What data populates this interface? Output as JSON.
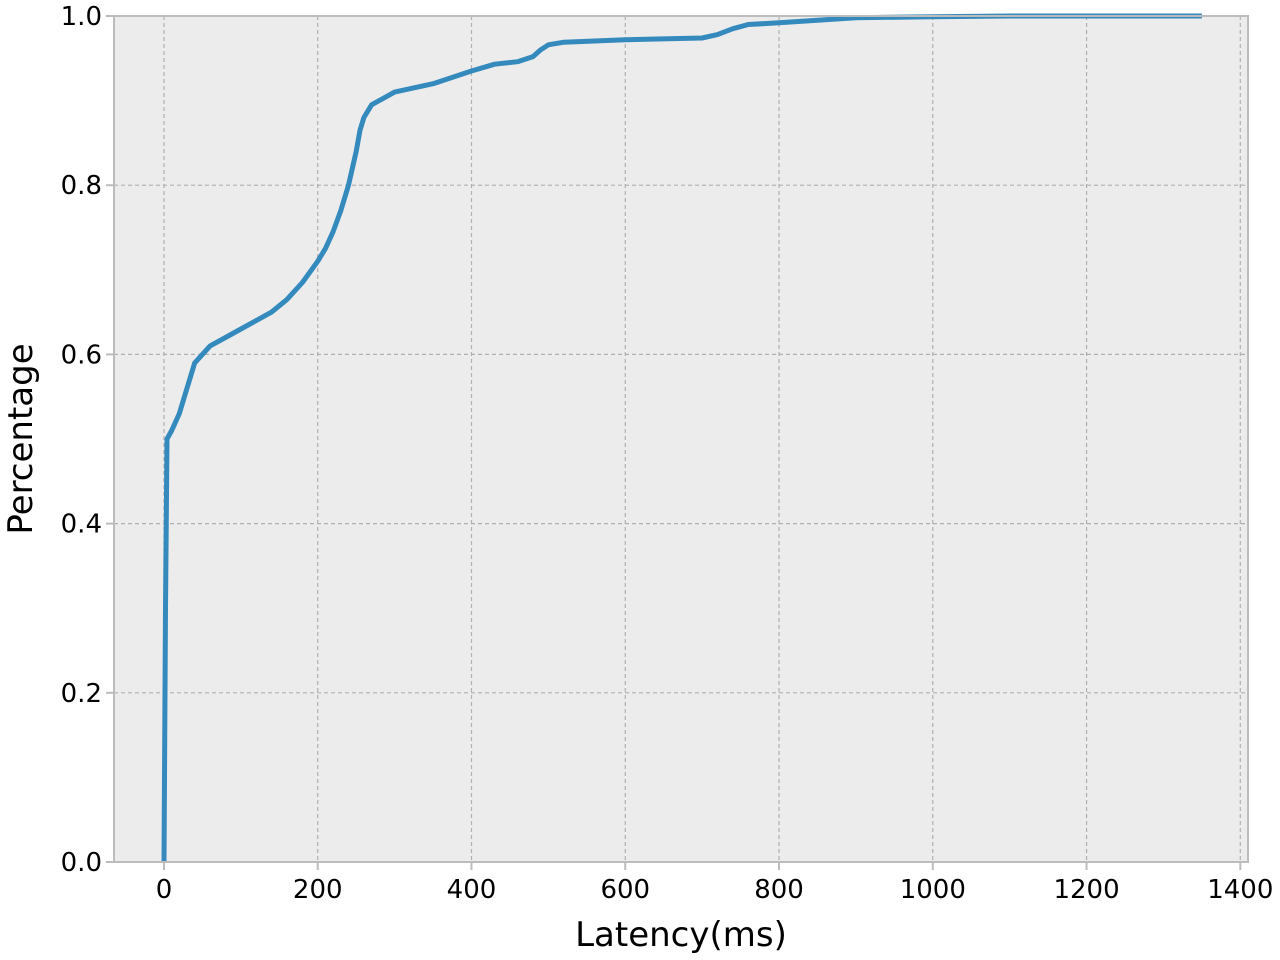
{
  "chart_data": {
    "type": "line",
    "title": "",
    "xlabel": "Latency(ms)",
    "ylabel": "Percentage",
    "xlim": [
      -65,
      1410
    ],
    "ylim": [
      0.0,
      1.0
    ],
    "xticks": [
      0,
      200,
      400,
      600,
      800,
      1000,
      1200,
      1400
    ],
    "xtick_labels": [
      "0",
      "200",
      "400",
      "600",
      "800",
      "1000",
      "1200",
      "1400"
    ],
    "yticks": [
      0.0,
      0.2,
      0.4,
      0.6,
      0.8,
      1.0
    ],
    "ytick_labels": [
      "0.0",
      "0.2",
      "0.4",
      "0.6",
      "0.8",
      "1.0"
    ],
    "grid": true,
    "background": "#ececec",
    "series": [
      {
        "color": "#348abd",
        "x": [
          0,
          2,
          4,
          10,
          20,
          30,
          40,
          50,
          60,
          80,
          100,
          120,
          140,
          160,
          180,
          200,
          210,
          220,
          230,
          240,
          250,
          255,
          260,
          270,
          280,
          300,
          350,
          400,
          430,
          460,
          480,
          490,
          500,
          520,
          600,
          700,
          720,
          740,
          760,
          800,
          850,
          900,
          1000,
          1100,
          1200,
          1350
        ],
        "y": [
          0.0,
          0.3,
          0.5,
          0.51,
          0.53,
          0.56,
          0.59,
          0.6,
          0.61,
          0.62,
          0.63,
          0.64,
          0.65,
          0.665,
          0.685,
          0.71,
          0.725,
          0.745,
          0.77,
          0.8,
          0.84,
          0.865,
          0.88,
          0.895,
          0.9,
          0.91,
          0.92,
          0.935,
          0.943,
          0.946,
          0.952,
          0.96,
          0.966,
          0.969,
          0.972,
          0.974,
          0.978,
          0.985,
          0.99,
          0.992,
          0.995,
          0.998,
          0.999,
          1.0,
          1.0,
          1.0
        ]
      }
    ]
  }
}
